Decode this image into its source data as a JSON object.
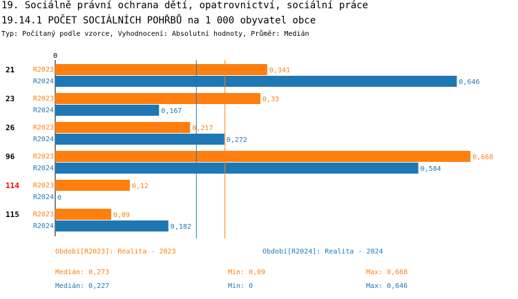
{
  "header": {
    "title": "19. Sociálně právní ochrana dětí, opatrovnictví, sociální práce",
    "subtitle_main": "19.14.1 POČET SOCIÁLNÍCH POHŘBŮ na 1 000 obyvatel obce",
    "type_line": "Typ: Počítaný podle vzorce, Vyhodnocení: Absolutní hodnoty, Průměr: Medián"
  },
  "colors": {
    "r2023": "#ff7f0e",
    "r2024": "#1f77b4",
    "highlight": "#ff0000",
    "text": "#000000"
  },
  "chart_data": {
    "type": "bar",
    "orientation": "horizontal",
    "x_axis_zero_label": "0",
    "xlim": [
      0,
      0.68
    ],
    "categories": [
      "21",
      "23",
      "26",
      "96",
      "114",
      "115"
    ],
    "highlighted_category": "114",
    "series": [
      {
        "name": "R2023",
        "values": [
          0.341,
          0.33,
          0.217,
          0.668,
          0.12,
          0.09
        ],
        "labels": [
          "0,341",
          "0,33",
          "0,217",
          "0,668",
          "0,12",
          "0,09"
        ]
      },
      {
        "name": "R2024",
        "values": [
          0.646,
          0.167,
          0.272,
          0.584,
          0,
          0.182
        ],
        "labels": [
          "0,646",
          "0,167",
          "0,272",
          "0,584",
          "0",
          "0,182"
        ]
      }
    ],
    "median_lines": {
      "R2023": 0.273,
      "R2024": 0.227
    }
  },
  "legend": {
    "r2023": {
      "period": "Období[R2023]: Realita - 2023",
      "median": "Medián: 0,273",
      "min": "Min: 0,09",
      "max": "Max: 0,668"
    },
    "r2024": {
      "period": "Období[R2024]: Realita - 2024",
      "median": "Medián: 0,227",
      "min": "Min: 0",
      "max": "Max: 0,646"
    }
  }
}
